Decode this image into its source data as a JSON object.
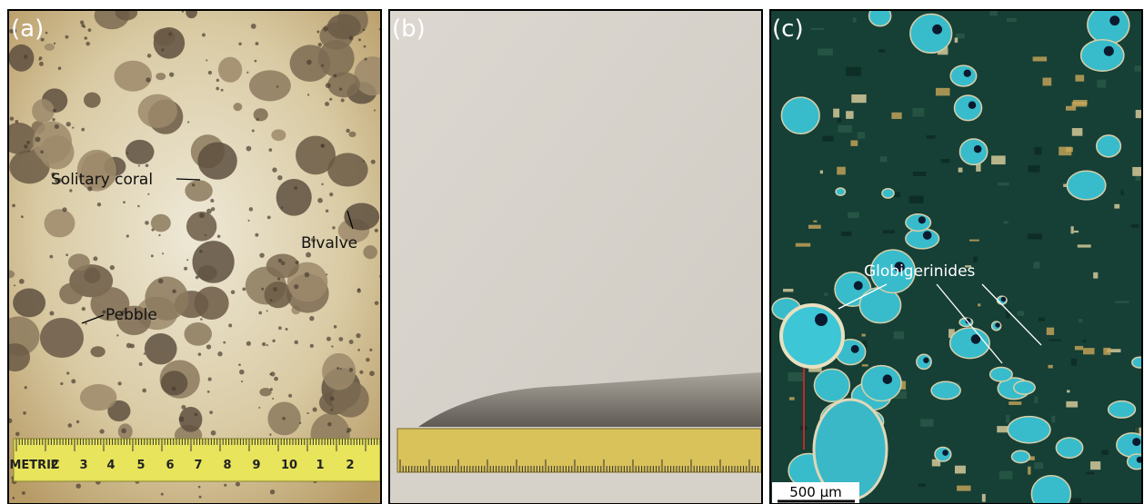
{
  "panels": [
    {
      "label": "(a)",
      "annotations": [
        "Solitary coral",
        "Bivalve",
        "Pebble"
      ],
      "ruler": [
        "METRIC",
        "2",
        "3",
        "4",
        "5",
        "6",
        "7",
        "8",
        "9",
        "10",
        "1",
        "2"
      ]
    },
    {
      "label": "(b)"
    },
    {
      "label": "(c)",
      "annotations": [
        "Globigerinides"
      ],
      "scale_bar": "500 µm"
    }
  ]
}
